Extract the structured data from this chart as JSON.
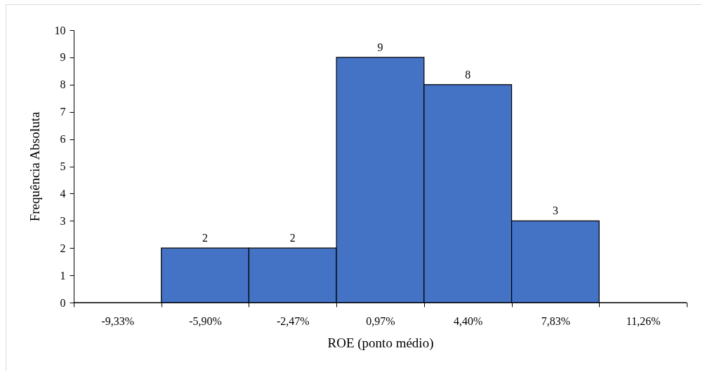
{
  "chart_data": {
    "type": "bar",
    "xlabel": "ROE (ponto médio)",
    "ylabel": "Frequência Absoluta",
    "categories": [
      "-9,33%",
      "-5,90%",
      "-2,47%",
      "0,97%",
      "4,40%",
      "7,83%",
      "11,26%"
    ],
    "values": [
      0,
      2,
      2,
      9,
      8,
      3,
      0
    ],
    "value_labels": [
      null,
      "2",
      "2",
      "9",
      "8",
      "3",
      null
    ],
    "color": "#4472c4",
    "ylim": [
      0,
      10
    ],
    "yticks": [
      0,
      1,
      2,
      3,
      4,
      5,
      6,
      7,
      8,
      9,
      10
    ],
    "grid": false
  }
}
